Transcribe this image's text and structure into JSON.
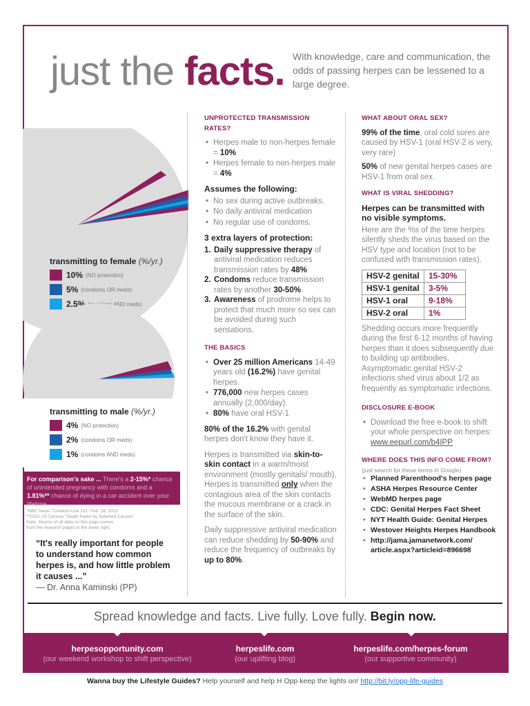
{
  "header": {
    "title_light": "just the",
    "title_bold": "facts.",
    "intro": "With knowledge, care and communication, the odds of passing herpes can be lessened to a large degree."
  },
  "female_legend": {
    "title": "transmitting to female",
    "unit": "(%/yr.)",
    "items": [
      {
        "value": "10%",
        "note": "(NO protection)",
        "color": "#8e1f5a"
      },
      {
        "value": "5%",
        "note": "(condoms OR meds)",
        "color": "#1f5fa8"
      },
      {
        "value": "2.5%",
        "note": "(condoms AND meds)",
        "color": "#14a3e6"
      }
    ]
  },
  "male_legend": {
    "title": "transmitting to male",
    "unit": "(%/yr.)",
    "items": [
      {
        "value": "4%",
        "note": "(NO protection)",
        "color": "#8e1f5a"
      },
      {
        "value": "2%",
        "note": "(condoms OR meds)",
        "color": "#1f5fa8"
      },
      {
        "value": "1%",
        "note": "(condoms AND meds)",
        "color": "#14a3e6"
      }
    ]
  },
  "comparison": {
    "lead": "For comparison's sake ...",
    "text1": " There's a ",
    "pct1": "2-15%*",
    "text2": " chance of unintended pregnancy with condoms and a ",
    "pct2": "1.81%**",
    "text3": " chance of dying in a car accident over your lifetime."
  },
  "sources_note": [
    "*NBC News \"Condom Use 101\" Feb. 26, 2012",
    "**2012 US Census \"Death Rates by Selected Causes\"",
    "Note: Source of all data on this page comes",
    "from the research pages to the lower right."
  ],
  "quote": {
    "text": "“It's really important for people to understand how common herpes is, and how little problem it causes ...”",
    "author": "— Dr. Anna Kaminski (PP)"
  },
  "col2": {
    "h1": "UNPROTECTED TRANSMISSION RATES?",
    "rate1_pre": "Herpes male to non-herpes female = ",
    "rate1_val": "10%",
    "rate2_pre": "Herpes female to non-herpes male = ",
    "rate2_val": "4%",
    "assumes": "Assumes the following:",
    "assume_items": [
      "No sex during active outbreaks.",
      "No daily antiviral medication",
      "No regular use of condoms."
    ],
    "layers": "3 extra layers of protection:",
    "l1_b": "Daily suppressive therapy",
    "l1_t": " of antiviral medication reduces transmission rates by ",
    "l1_v": "48%",
    "l2_b": "Condoms",
    "l2_t": " reduce transmission rates by another ",
    "l2_v": "30-50%",
    "l3_b": "Awareness",
    "l3_t": " of prodrome helps to protect that much more so sex can be avoided during such sensations.",
    "h2": "THE BASICS",
    "b1_b": "Over 25 million Americans",
    "b1_t": " 14-49 years old ",
    "b1_v": "(16.2%)",
    "b1_t2": " have genital herpes.",
    "b2_b": "776,000",
    "b2_t": " new herpes cases annually (2,000/day).",
    "b3_b": "80%",
    "b3_t": " have oral HSV-1",
    "p1_b": "80% of the 16.2%",
    "p1_t": " with genital herpes don't know they have it.",
    "p2_a": "Herpes is transmitted via ",
    "p2_b": "skin-to-skin contact",
    "p2_c": " in a warm/moist environment (mostly genitals/ mouth). Herpes is transmitted ",
    "p2_d": "only",
    "p2_e": " when the contagious area of the skin contacts the mucous membrane or a crack in the surface of the skin.",
    "p3_a": "Daily suppressive antiviral medication can reduce shedding by ",
    "p3_b": "50-90%",
    "p3_c": " and reduce the frequency of outbreaks by ",
    "p3_d": "up to 80%",
    "p3_e": "."
  },
  "col3": {
    "h1": "WHAT ABOUT ORAL SEX?",
    "o1_b": "99% of the time",
    "o1_t": ", oral cold sores are caused by HSV-1 (oral HSV-2 is very, very rare)",
    "o2_b": "50%",
    "o2_t": " of new genital herpes cases are HSV-1 from oral sex.",
    "h2": "WHAT IS VIRAL SHEDDING?",
    "s_title": "Herpes can be transmitted with no visible symptoms.",
    "s_text": "Here are the %s of the time herpes silently sheds the virus based on the HSV type and location (not to be confused with transmission rates).",
    "table": [
      {
        "k": "HSV-2 genital",
        "v": "15-30%"
      },
      {
        "k": "HSV-1 genital",
        "v": "3-5%"
      },
      {
        "k": "HSV-1 oral",
        "v": "9-18%"
      },
      {
        "k": "HSV-2 oral",
        "v": "1%"
      }
    ],
    "s_text2": "Shedding occurs more frequently during the first 6-12 months of having herpes than it does subsequently due to building up antibodies. Asymptomatic genital HSV-2 infections shed virus about 1/2 as frequently as symptomatic infections.",
    "h3": "DISCLOSURE E-BOOK",
    "ebook": "Download the free e-book to shift your whole perspective on herpes: ",
    "ebook_link": "www.eepurl.com/b4IPP",
    "h4": "WHERE DOES THIS INFO COME FROM?",
    "src_note": "(just search for these terms in Google)",
    "sources": [
      "Planned Parenthood's herpes page",
      "ASHA Herpes Resource Center",
      "WebMD herpes page",
      "CDC: Genital Herpes Fact Sheet",
      "NYT Health Guide: Genital Herpes",
      "Westover Heights Herpes Handbook",
      "http://jama.jamanetwork.com/ article.aspx?articleid=896698"
    ]
  },
  "tagline": {
    "text": "Spread knowledge and facts. Live fully. Love fully. ",
    "bold": "Begin now."
  },
  "band": [
    {
      "link": "herpesopportunity.com",
      "desc": "(our weekend workshop to shift perspective)"
    },
    {
      "link": "herpeslife.com",
      "desc": "(our uplifting blog)"
    },
    {
      "link": "herpeslife.com/herpes-forum",
      "desc": "(our supportive community)"
    }
  ],
  "footer": {
    "bold": "Wanna buy the Lifestyle Guides?",
    "text": " Help yourself and help H Opp keep the lights on! ",
    "link": "http://bit.ly/opp-life-guides"
  }
}
